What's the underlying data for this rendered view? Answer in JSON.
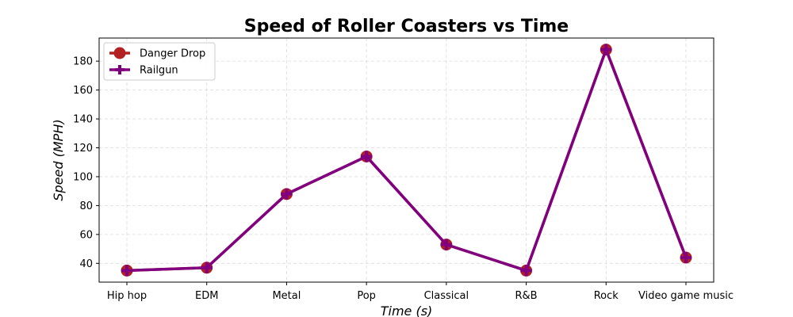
{
  "chart_data": {
    "type": "line",
    "title": "Speed of Roller Coasters vs Time",
    "xlabel": "Time (s)",
    "ylabel": "Speed (MPH)",
    "categories": [
      "Hip hop",
      "EDM",
      "Metal",
      "Pop",
      "Classical",
      "R&B",
      "Rock",
      "Video game music"
    ],
    "ylim": [
      27,
      196
    ],
    "yticks": [
      40,
      60,
      80,
      100,
      120,
      140,
      160,
      180
    ],
    "grid": true,
    "legend_position": "top-left",
    "series": [
      {
        "name": "Danger Drop",
        "values": [
          35,
          37,
          88,
          114,
          53,
          35,
          188,
          44
        ],
        "color": "#b22222",
        "marker": "circle"
      },
      {
        "name": "Railgun",
        "values": [
          35,
          37,
          88,
          114,
          53,
          35,
          188,
          44
        ],
        "color": "#800080",
        "marker": "plus"
      }
    ]
  }
}
